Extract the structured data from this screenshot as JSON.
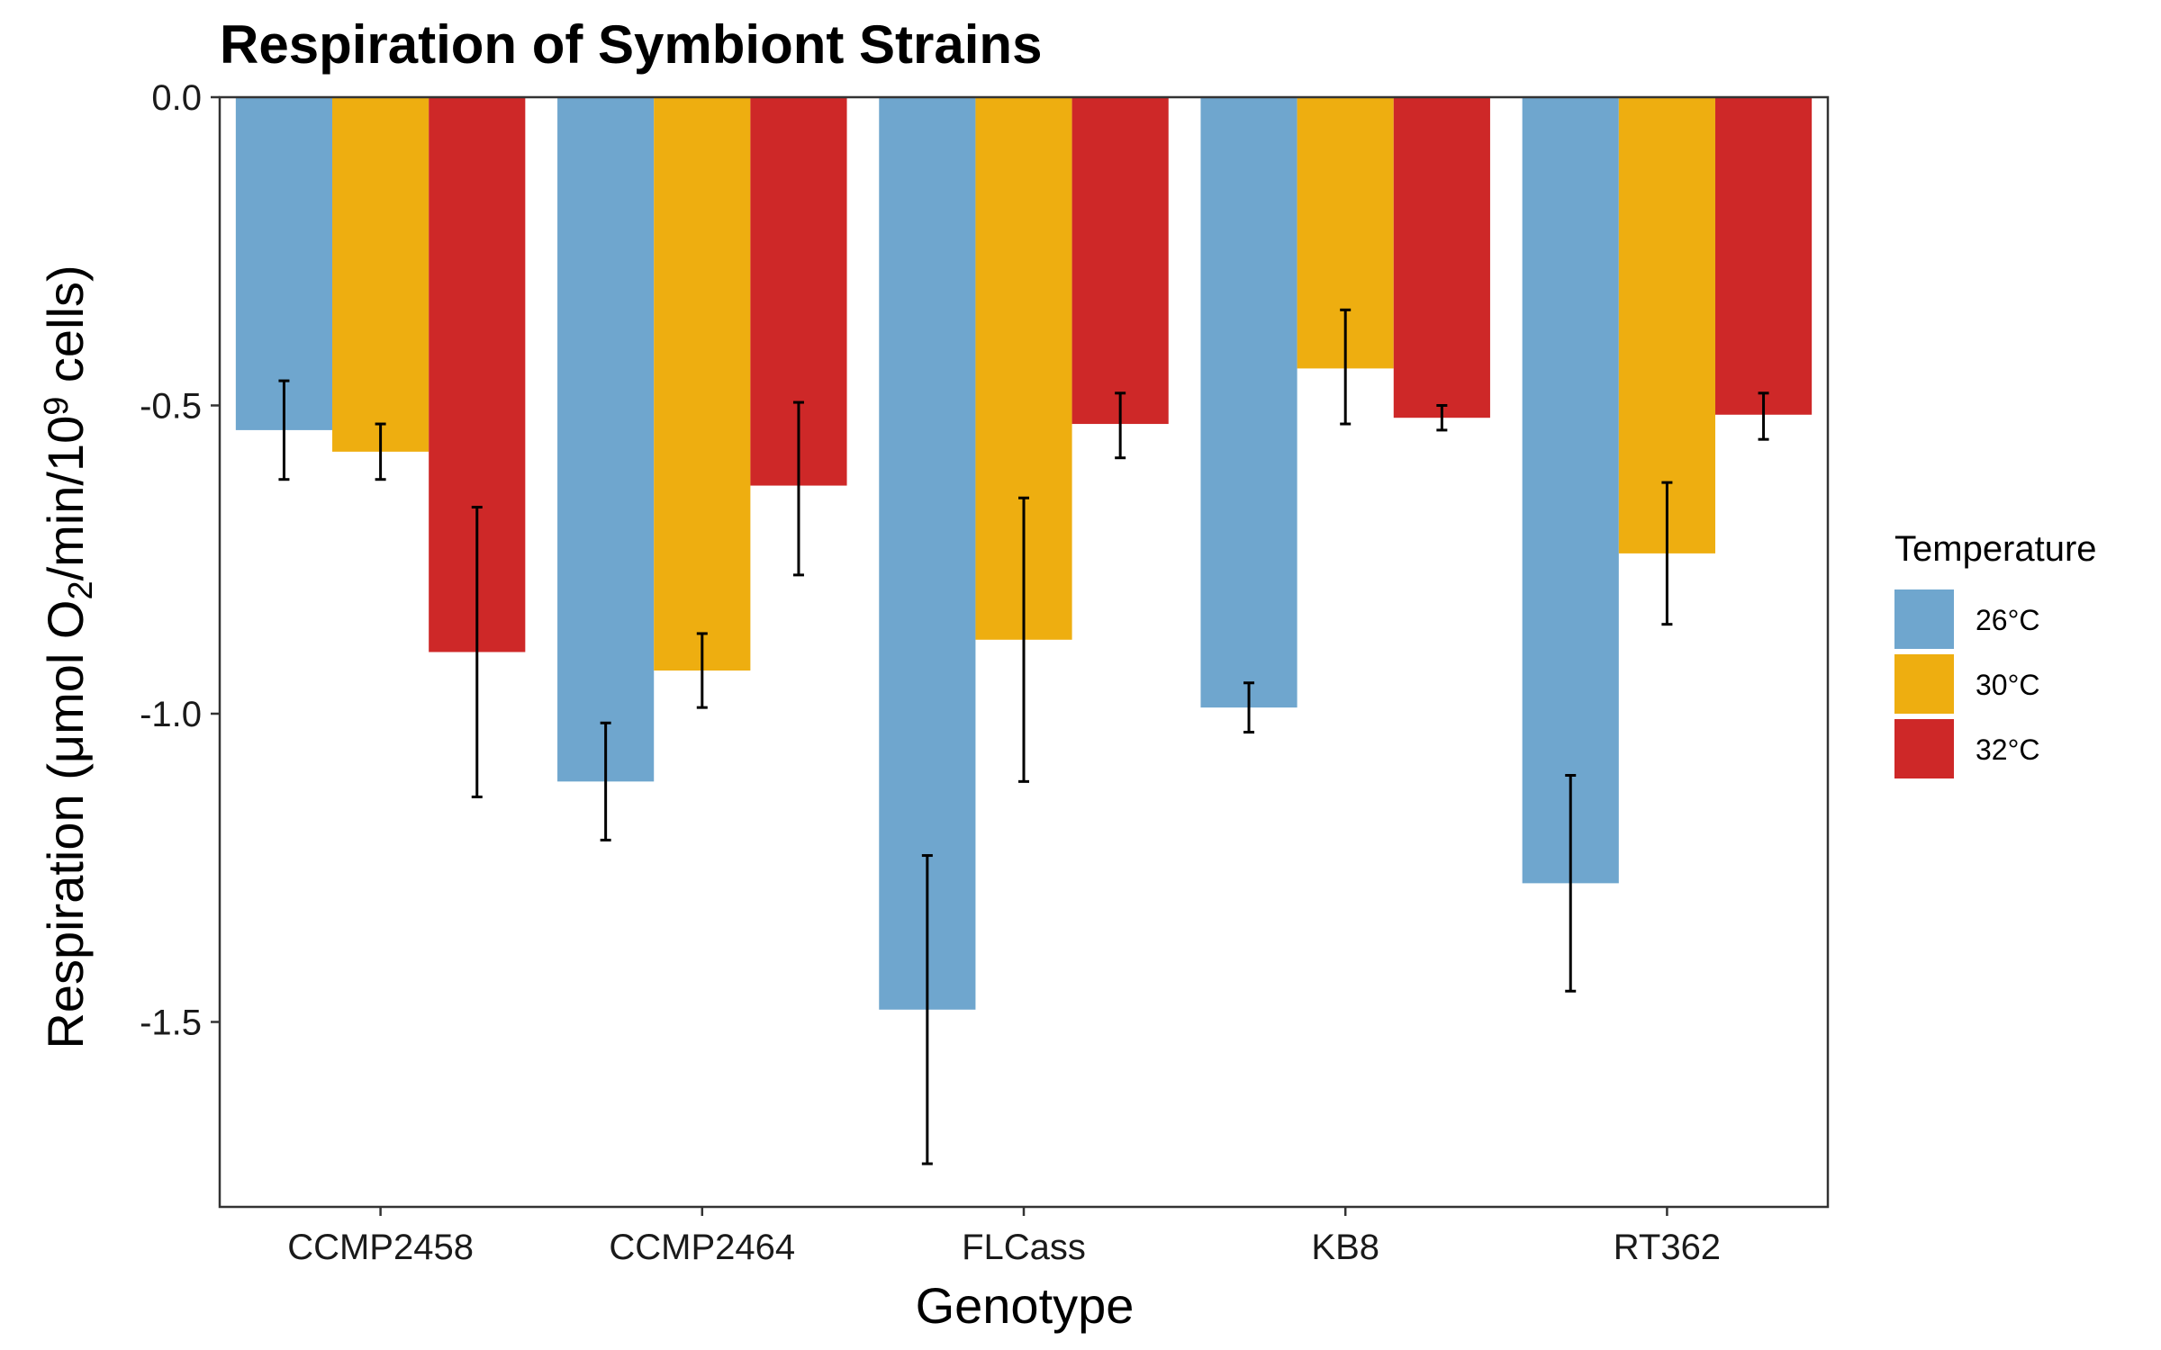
{
  "chart_data": {
    "type": "bar",
    "title": "Respiration of Symbiont Strains",
    "xlabel": "Genotype",
    "ylabel": {
      "prefix": "Respiration (μmol O",
      "sub": "2",
      "middle": "/min/10",
      "sup": "9",
      "suffix": " cells)"
    },
    "ylim": [
      -1.8,
      0.0
    ],
    "yticks": [
      0.0,
      -0.5,
      -1.0,
      -1.5
    ],
    "ytick_labels": [
      "0.0",
      "-0.5",
      "-1.0",
      "-1.5"
    ],
    "grid": false,
    "legend": {
      "title": "Temperature",
      "position": "right"
    },
    "categories": [
      "CCMP2458",
      "CCMP2464",
      "FLCass",
      "KB8",
      "RT362"
    ],
    "series": [
      {
        "name": "26°C",
        "color": "#6FA6CE",
        "values": [
          -0.54,
          -1.11,
          -1.48,
          -0.99,
          -1.275
        ],
        "err_low": [
          -0.62,
          -1.205,
          -1.73,
          -1.03,
          -1.45
        ],
        "err_high": [
          -0.46,
          -1.015,
          -1.23,
          -0.95,
          -1.1
        ]
      },
      {
        "name": "30°C",
        "color": "#EEAE10",
        "values": [
          -0.575,
          -0.93,
          -0.88,
          -0.44,
          -0.74
        ],
        "err_low": [
          -0.62,
          -0.99,
          -1.11,
          -0.53,
          -0.855
        ],
        "err_high": [
          -0.53,
          -0.87,
          -0.65,
          -0.345,
          -0.625
        ]
      },
      {
        "name": "32°C",
        "color": "#CE2828",
        "values": [
          -0.9,
          -0.63,
          -0.53,
          -0.52,
          -0.515
        ],
        "err_low": [
          -1.135,
          -0.775,
          -0.585,
          -0.54,
          -0.555
        ],
        "err_high": [
          -0.665,
          -0.495,
          -0.48,
          -0.5,
          -0.48
        ]
      }
    ]
  }
}
